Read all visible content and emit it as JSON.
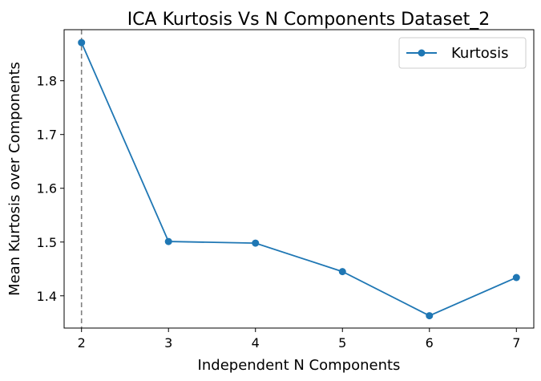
{
  "chart_data": {
    "type": "line",
    "title": "ICA Kurtosis Vs N Components Dataset_2",
    "xlabel": "Independent N Components",
    "ylabel": "Mean Kurtosis over Components",
    "xlim": [
      1.8,
      7.2
    ],
    "ylim": [
      1.34,
      1.895
    ],
    "xticks": [
      2,
      3,
      4,
      5,
      6,
      7
    ],
    "yticks": [
      1.4,
      1.5,
      1.6,
      1.7,
      1.8
    ],
    "ytick_labels": [
      "1.4",
      "1.5",
      "1.6",
      "1.7",
      "1.8"
    ],
    "grid": false,
    "legend_position": "top-right",
    "series": [
      {
        "name": "Kurtosis",
        "color": "#1f77b4",
        "marker": "circle",
        "x": [
          2,
          3,
          4,
          5,
          6,
          7
        ],
        "y": [
          1.871,
          1.501,
          1.498,
          1.445,
          1.363,
          1.434
        ]
      }
    ],
    "reference_lines": [
      {
        "orientation": "vertical",
        "x": 2,
        "style": "dashed",
        "color": "#808080"
      }
    ]
  }
}
